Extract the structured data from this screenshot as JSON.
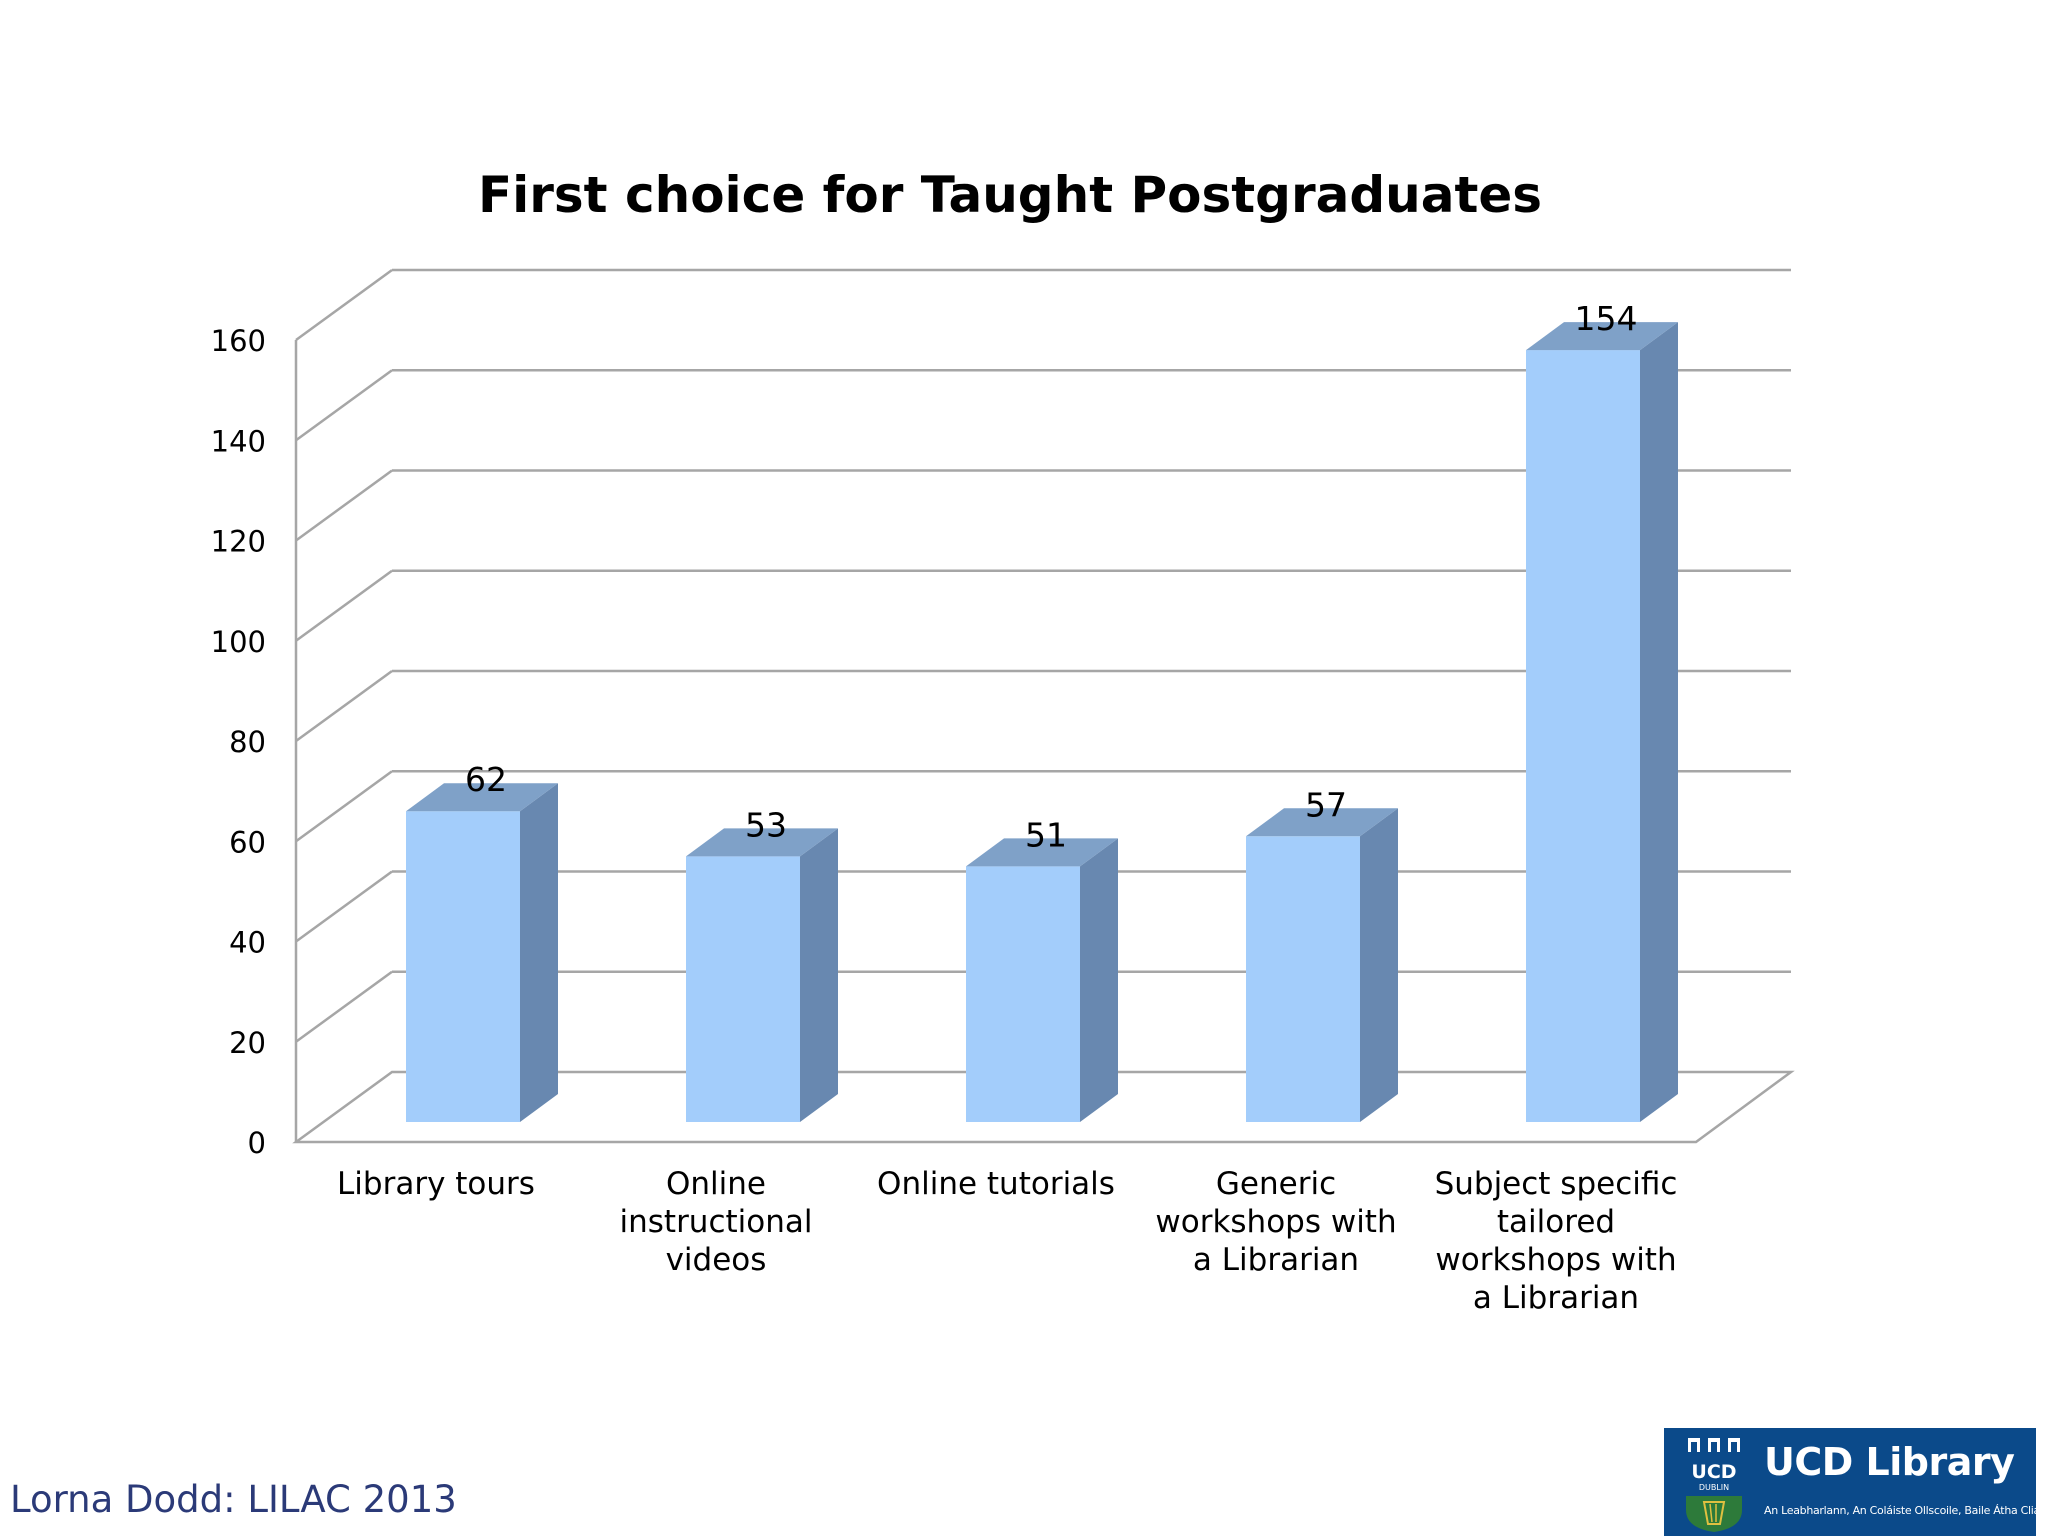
{
  "footer": {
    "credit": "Lorna Dodd: LILAC 2013"
  },
  "logo": {
    "crest_text": "UCD",
    "crest_subtext": "DUBLIN",
    "title": "UCD Library",
    "subtitle": "An Leabharlann, An Coláiste Ollscoile, Baile Átha Cliath"
  },
  "chart_data": {
    "type": "bar",
    "style": "3d-column",
    "title": "First choice for Taught Postgraduates",
    "categories": [
      [
        "Library tours"
      ],
      [
        "Online",
        "instructional",
        "videos"
      ],
      [
        "Online tutorials"
      ],
      [
        "Generic",
        "workshops with",
        "a Librarian"
      ],
      [
        "Subject specific",
        "tailored",
        "workshops with",
        "a Librarian"
      ]
    ],
    "values": [
      62,
      53,
      51,
      57,
      154
    ],
    "data_labels": [
      "62",
      "53",
      "51",
      "57",
      "154"
    ],
    "ylim": [
      0,
      160
    ],
    "yticks": [
      0,
      20,
      40,
      60,
      80,
      100,
      120,
      140,
      160
    ],
    "grid": true,
    "legend": "none",
    "colors": {
      "bar_front": "#a3cdfb",
      "bar_side": "#6888b0",
      "bar_top": "#7fa1c8",
      "grid": "#a6a6a6",
      "text": "#000000"
    }
  }
}
